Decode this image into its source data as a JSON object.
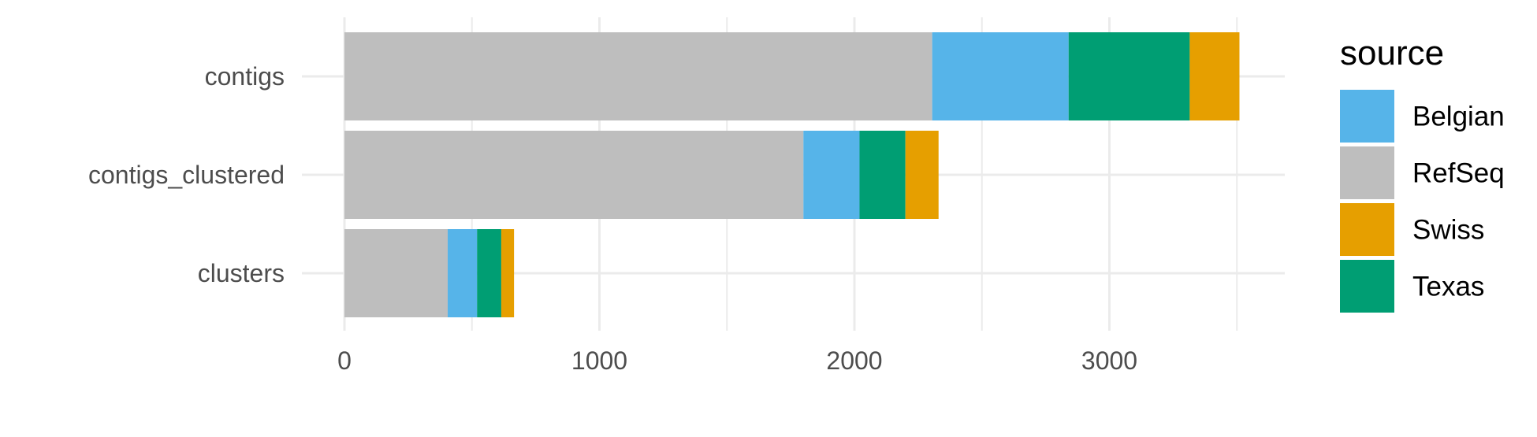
{
  "chart_data": {
    "type": "bar",
    "orientation": "horizontal",
    "stacked": true,
    "categories": [
      "contigs",
      "contigs_clustered",
      "clusters"
    ],
    "series": [
      {
        "name": "RefSeq",
        "color": "#bebebe",
        "values": [
          2305,
          1800,
          405
        ]
      },
      {
        "name": "Belgian",
        "color": "#56b4e9",
        "values": [
          535,
          220,
          115
        ]
      },
      {
        "name": "Texas",
        "color": "#009e73",
        "values": [
          475,
          180,
          95
        ]
      },
      {
        "name": "Swiss",
        "color": "#e69f00",
        "values": [
          195,
          130,
          50
        ]
      }
    ],
    "xticks": [
      0,
      1000,
      2000,
      3000
    ],
    "xlim": [
      0,
      3650
    ],
    "grid": true,
    "legend": {
      "title": "source",
      "position": "right",
      "entries": [
        {
          "label": "Belgian",
          "color": "#56b4e9"
        },
        {
          "label": "RefSeq",
          "color": "#bebebe"
        },
        {
          "label": "Swiss",
          "color": "#e69f00"
        },
        {
          "label": "Texas",
          "color": "#009e73"
        }
      ]
    },
    "title": "",
    "xlabel": "",
    "ylabel": ""
  }
}
